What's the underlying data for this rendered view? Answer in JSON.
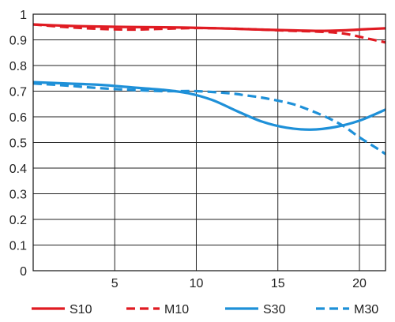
{
  "chart_data": {
    "type": "line",
    "title": "",
    "xlabel": "",
    "ylabel": "",
    "xlim": [
      0,
      21.6
    ],
    "ylim": [
      0,
      1
    ],
    "grid": true,
    "legend_position": "bottom",
    "x_ticks": [
      {
        "value": 5,
        "label": "5"
      },
      {
        "value": 10,
        "label": "10"
      },
      {
        "value": 15,
        "label": "15"
      },
      {
        "value": 20,
        "label": "20"
      }
    ],
    "y_ticks": [
      {
        "value": 0,
        "label": "0"
      },
      {
        "value": 0.1,
        "label": "0.1"
      },
      {
        "value": 0.2,
        "label": "0.2"
      },
      {
        "value": 0.3,
        "label": "0.3"
      },
      {
        "value": 0.4,
        "label": "0.4"
      },
      {
        "value": 0.5,
        "label": "0.5"
      },
      {
        "value": 0.6,
        "label": "0.6"
      },
      {
        "value": 0.7,
        "label": "0.7"
      },
      {
        "value": 0.8,
        "label": "0.8"
      },
      {
        "value": 0.9,
        "label": "0.9"
      },
      {
        "value": 1,
        "label": "1"
      }
    ],
    "series": [
      {
        "name": "S10",
        "color": "#e01b22",
        "dash": "solid",
        "x": [
          0,
          2,
          4,
          6,
          8,
          10,
          12,
          14,
          16,
          17.5,
          19,
          20.5,
          21.6
        ],
        "y": [
          0.96,
          0.955,
          0.952,
          0.95,
          0.949,
          0.947,
          0.944,
          0.94,
          0.937,
          0.935,
          0.937,
          0.942,
          0.945
        ]
      },
      {
        "name": "M10",
        "color": "#e01b22",
        "dash": "dashed",
        "x": [
          0,
          2,
          4,
          6,
          8,
          10,
          12,
          14,
          16,
          17.5,
          19,
          20.5,
          21.6
        ],
        "y": [
          0.96,
          0.95,
          0.943,
          0.94,
          0.943,
          0.946,
          0.944,
          0.94,
          0.935,
          0.932,
          0.925,
          0.905,
          0.89
        ]
      },
      {
        "name": "S30",
        "color": "#1e90d8",
        "dash": "solid",
        "x": [
          0,
          2,
          4,
          6,
          8,
          9.5,
          11,
          12.5,
          14,
          15.5,
          17,
          18.5,
          20,
          21.6
        ],
        "y": [
          0.735,
          0.73,
          0.725,
          0.715,
          0.705,
          0.692,
          0.665,
          0.622,
          0.582,
          0.558,
          0.55,
          0.56,
          0.585,
          0.628
        ]
      },
      {
        "name": "M30",
        "color": "#1e90d8",
        "dash": "dashed",
        "x": [
          0,
          2,
          4,
          6,
          8,
          10,
          12,
          13,
          14,
          15,
          16,
          17,
          18,
          19,
          20,
          21,
          21.6
        ],
        "y": [
          0.73,
          0.722,
          0.712,
          0.705,
          0.7,
          0.7,
          0.692,
          0.684,
          0.675,
          0.663,
          0.648,
          0.625,
          0.598,
          0.565,
          0.52,
          0.48,
          0.455
        ]
      }
    ]
  }
}
